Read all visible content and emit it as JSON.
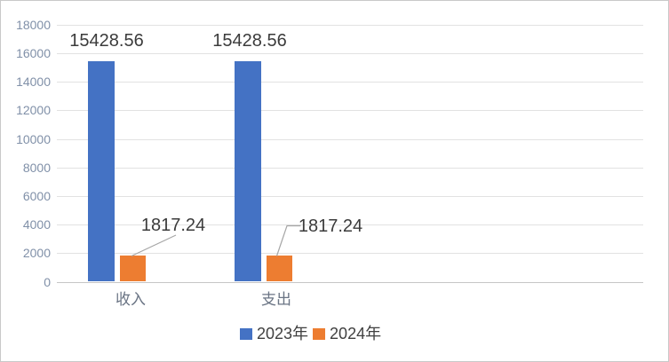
{
  "chart_data": {
    "type": "bar",
    "title": "",
    "xlabel": "",
    "ylabel": "",
    "categories": [
      "收入",
      "支出"
    ],
    "series": [
      {
        "name": "2023年",
        "color": "#4472C4",
        "values": [
          15428.56,
          15428.56
        ],
        "labels": [
          "15428.56",
          "15428.56"
        ]
      },
      {
        "name": "2024年",
        "color": "#ED7D31",
        "values": [
          1817.24,
          1817.24
        ],
        "labels": [
          "1817.24",
          "1817.24"
        ]
      }
    ],
    "ylim": [
      0,
      18000
    ],
    "yticks": [
      0,
      2000,
      4000,
      6000,
      8000,
      10000,
      12000,
      14000,
      16000,
      18000
    ],
    "ytick_labels": [
      "0",
      "2000",
      "4000",
      "6000",
      "8000",
      "10000",
      "12000",
      "14000",
      "16000",
      "18000"
    ],
    "grid": true,
    "legend_position": "bottom",
    "data_label_leader_lines": 2,
    "colors": {
      "grid": "#e2e2e2",
      "axis_line": "#c6c6c6",
      "tick_text": "#8090a8",
      "data_label_text": "#3b3b3b",
      "category_text": "#6a7484",
      "legend_text": "#404040",
      "leader_line": "#a6a6a6"
    }
  }
}
